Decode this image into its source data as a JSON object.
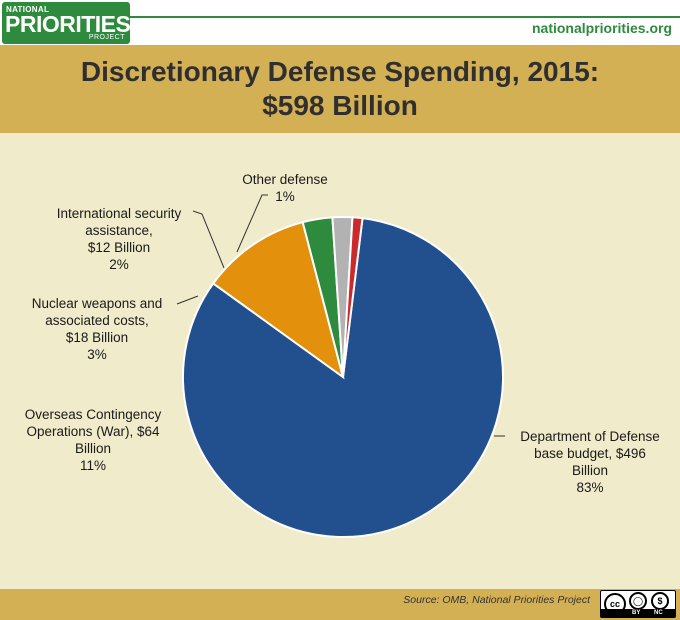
{
  "logo": {
    "line1": "NATIONAL",
    "line2": "PRIORITIES",
    "line3": "PROJECT"
  },
  "site_url": "nationalpriorities.org",
  "title_line1": "Discretionary Defense Spending, 2015:",
  "title_line2": "$598 Billion",
  "source": "Source: OMB, National Priorities Project",
  "license": {
    "cc": "cc",
    "by": "BY",
    "nc": "NC"
  },
  "colors": {
    "background": "#d4b054",
    "panel": "#f0ebca",
    "brand_green": "#2e8b3e"
  },
  "chart_data": {
    "type": "pie",
    "title": "Discretionary Defense Spending, 2015: $598 Billion",
    "slices": [
      {
        "key": "dod",
        "value": 83,
        "amount_billion": 496,
        "color": "#22508f",
        "label_lines": [
          "Department of Defense",
          "base budget, $496",
          "Billion",
          "83%"
        ]
      },
      {
        "key": "oco",
        "value": 11,
        "amount_billion": 64,
        "color": "#e3900d",
        "label_lines": [
          "Overseas Contingency",
          "Operations (War), $64",
          "Billion",
          "11%"
        ]
      },
      {
        "key": "nuclear",
        "value": 3,
        "amount_billion": 18,
        "color": "#2e8b3e",
        "label_lines": [
          "Nuclear weapons and",
          "associated costs,",
          "$18 Billion",
          "3%"
        ]
      },
      {
        "key": "intl",
        "value": 2,
        "amount_billion": 12,
        "color": "#b2b2b2",
        "label_lines": [
          "International security",
          "assistance,",
          "$12 Billion",
          "2%"
        ]
      },
      {
        "key": "other",
        "value": 1,
        "color": "#cc2a2a",
        "label_lines": [
          "Other defense",
          "1%"
        ]
      }
    ]
  }
}
